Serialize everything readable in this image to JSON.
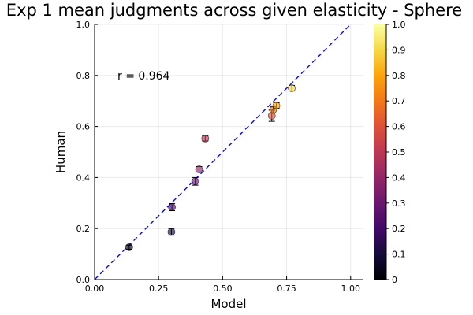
{
  "chart_data": {
    "type": "scatter",
    "title": "Exp 1 mean judgments across given elasticity - Sphere",
    "xlabel": "Model",
    "ylabel": "Human",
    "xlim": [
      0,
      1.05
    ],
    "ylim": [
      0,
      1.0
    ],
    "xticks": [
      0.0,
      0.25,
      0.5,
      0.75,
      1.0
    ],
    "xtick_labels": [
      "0.00",
      "0.25",
      "0.50",
      "0.75",
      "1.00"
    ],
    "yticks": [
      0.0,
      0.2,
      0.4,
      0.6,
      0.8,
      1.0
    ],
    "ytick_labels": [
      "0.0",
      "0.2",
      "0.4",
      "0.6",
      "0.8",
      "1.0"
    ],
    "grid": true,
    "annotation": "r = 0.964",
    "reference_line": {
      "style": "dashed",
      "color": "#0000ff",
      "x": [
        0,
        1
      ],
      "y": [
        0,
        1
      ]
    },
    "colorbar": {
      "range": [
        0,
        1
      ],
      "ticks": [
        "0",
        "0.1",
        "0.2",
        "0.3",
        "0.4",
        "0.5",
        "0.6",
        "0.7",
        "0.8",
        "0.9",
        "1.0"
      ],
      "colormap": "inferno"
    },
    "points": [
      {
        "x": 0.135,
        "y": 0.127,
        "err": 0.008,
        "c": 0.0
      },
      {
        "x": 0.3,
        "y": 0.187,
        "err": 0.013,
        "c": 0.1
      },
      {
        "x": 0.302,
        "y": 0.284,
        "err": 0.014,
        "c": 0.2
      },
      {
        "x": 0.393,
        "y": 0.385,
        "err": 0.015,
        "c": 0.3
      },
      {
        "x": 0.408,
        "y": 0.432,
        "err": 0.011,
        "c": 0.4
      },
      {
        "x": 0.432,
        "y": 0.553,
        "err": 0.01,
        "c": 0.5
      },
      {
        "x": 0.692,
        "y": 0.642,
        "err": 0.022,
        "c": 0.6
      },
      {
        "x": 0.697,
        "y": 0.665,
        "err": 0.012,
        "c": 0.7
      },
      {
        "x": 0.71,
        "y": 0.682,
        "err": 0.011,
        "c": 0.8
      },
      {
        "x": 0.77,
        "y": 0.75,
        "err": 0.011,
        "c": 0.9
      }
    ]
  }
}
